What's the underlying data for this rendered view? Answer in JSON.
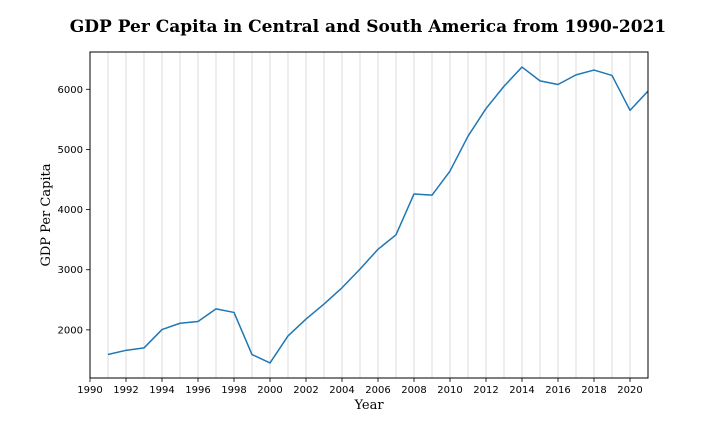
{
  "chart_data": {
    "type": "line",
    "title": "GDP Per Capita in Central and South America from 1990-2021",
    "xlabel": "Year",
    "ylabel": "GDP Per Capita",
    "xlim": [
      1990,
      2021
    ],
    "ylim": [
      1200,
      6620
    ],
    "x_ticks": [
      1990,
      1992,
      1994,
      1996,
      1998,
      2000,
      2002,
      2004,
      2006,
      2008,
      2010,
      2012,
      2014,
      2016,
      2018,
      2020
    ],
    "y_ticks": [
      2000,
      3000,
      4000,
      5000,
      6000
    ],
    "grid": "vertical, every year",
    "line_color": "#1f77b4",
    "series": [
      {
        "x": [
          1991,
          1992,
          1993,
          1994,
          1995,
          1996,
          1997,
          1998,
          1999,
          2000,
          2001,
          2002,
          2003,
          2004,
          2005,
          2006,
          2007,
          2008,
          2009,
          2010,
          2011,
          2012,
          2013,
          2014,
          2015,
          2016,
          2017,
          2018,
          2019,
          2020,
          2021
        ],
        "values": [
          1590,
          1660,
          1700,
          2005,
          2110,
          2140,
          2350,
          2290,
          1590,
          1450,
          1900,
          2180,
          2430,
          2700,
          3010,
          3340,
          3580,
          4260,
          4240,
          4640,
          5220,
          5680,
          6050,
          6370,
          6140,
          6080,
          6240,
          6320,
          6230,
          5650,
          5970
        ]
      }
    ]
  }
}
